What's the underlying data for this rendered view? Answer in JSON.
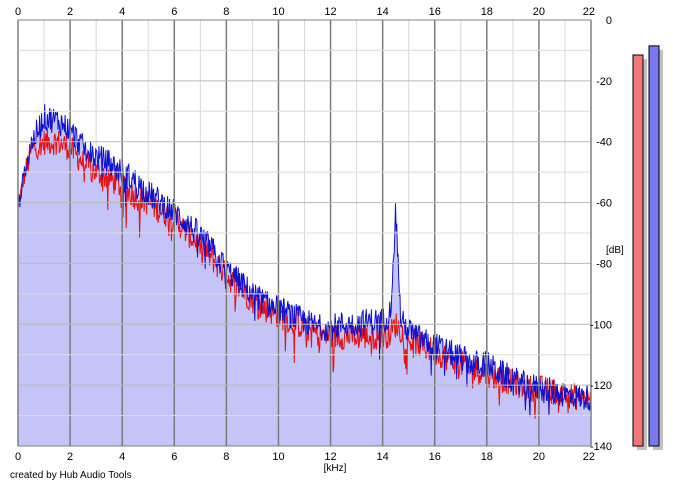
{
  "chart_data": {
    "type": "area",
    "title": "",
    "xlabel": "[kHz]",
    "ylabel": "[dB]",
    "xlim": [
      0,
      22
    ],
    "ylim": [
      -140,
      0
    ],
    "x_ticks": [
      "0",
      "2",
      "4",
      "6",
      "8",
      "10",
      "12",
      "14",
      "16",
      "18",
      "20",
      "22"
    ],
    "y_ticks": [
      "0",
      "-20",
      "-40",
      "-60",
      "-80",
      "-100",
      "-120",
      "-140"
    ],
    "grid": true,
    "series": [
      {
        "color": "#e81010",
        "x": [
          0,
          0.2,
          0.5,
          1,
          1.5,
          2,
          2.5,
          3,
          3.5,
          4,
          4.5,
          5,
          5.5,
          6,
          6.5,
          7,
          7.5,
          8,
          8.5,
          9,
          9.5,
          10,
          10.5,
          11,
          11.5,
          12,
          12.5,
          13,
          13.5,
          14,
          14.3,
          14.5,
          14.7,
          15,
          15.5,
          16,
          16.5,
          17,
          17.5,
          18,
          18.5,
          19,
          19.5,
          20,
          20.5,
          21,
          21.5,
          22
        ],
        "values": [
          -62,
          -53,
          -43,
          -40,
          -40,
          -42,
          -47,
          -50,
          -52,
          -55,
          -58,
          -60,
          -63,
          -65,
          -70,
          -74,
          -79,
          -84,
          -88,
          -92,
          -95,
          -97,
          -99,
          -101,
          -103,
          -104,
          -104,
          -104,
          -104,
          -104,
          -103,
          -100,
          -102,
          -105,
          -107,
          -109,
          -111,
          -113,
          -115,
          -116,
          -118,
          -119,
          -121,
          -121,
          -122,
          -123,
          -124,
          -125
        ]
      },
      {
        "color": "#1010d0",
        "x": [
          0,
          0.2,
          0.5,
          1,
          1.5,
          2,
          2.5,
          3,
          3.5,
          4,
          4.5,
          5,
          5.5,
          6,
          6.5,
          7,
          7.5,
          8,
          8.5,
          9,
          9.5,
          10,
          10.5,
          11,
          11.5,
          12,
          12.5,
          13,
          13.5,
          14,
          14.3,
          14.5,
          14.7,
          15,
          15.5,
          16,
          16.5,
          17,
          17.5,
          18,
          18.5,
          19,
          19.5,
          20,
          20.5,
          21,
          21.5,
          22
        ],
        "values": [
          -62,
          -52,
          -41,
          -32,
          -33,
          -36,
          -42,
          -45,
          -47,
          -50,
          -53,
          -57,
          -60,
          -63,
          -67,
          -71,
          -76,
          -82,
          -86,
          -90,
          -93,
          -95,
          -97,
          -99,
          -101,
          -101,
          -100,
          -100,
          -99,
          -99,
          -96,
          -62,
          -99,
          -102,
          -105,
          -107,
          -109,
          -111,
          -113,
          -113,
          -116,
          -118,
          -120,
          -121,
          -122,
          -123,
          -124,
          -124
        ]
      }
    ],
    "level_meters": [
      {
        "color": "#f07878",
        "level_db": -11.5
      },
      {
        "color": "#7878f0",
        "level_db": -8.5
      }
    ],
    "annotations": [
      "created by Hub Audio Tools"
    ]
  }
}
